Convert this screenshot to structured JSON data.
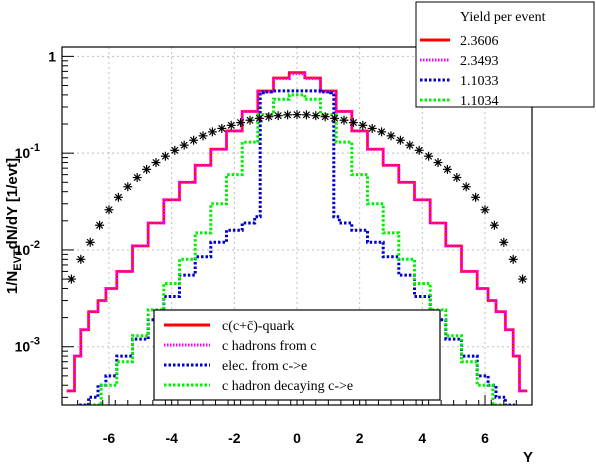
{
  "chart_data": {
    "type": "line",
    "xlabel": "Y",
    "ylabel": "1/N_EVT dN/dY [1/evt]",
    "y_scale": "log",
    "xlim": [
      -7.5,
      7.5
    ],
    "ylim": [
      0.00025,
      1.25
    ],
    "grid": true,
    "x_ticks": [
      -6,
      -4,
      -2,
      0,
      2,
      4,
      6
    ],
    "y_ticks": [
      {
        "value": 1,
        "label": "1"
      },
      {
        "value": 0.1,
        "label": "10^{-1}",
        "base": "10",
        "exp": "-1"
      },
      {
        "value": 0.01,
        "label": "10^{-2}",
        "base": "10",
        "exp": "-2"
      },
      {
        "value": 0.001,
        "label": "10^{-3}",
        "base": "10",
        "exp": "-3"
      }
    ],
    "yield_legend": {
      "title": "Yield per event",
      "placement": "top-right",
      "entries": [
        "2.3606",
        "2.3493",
        "1.1033",
        "1.1034"
      ]
    },
    "series_legend": {
      "placement": "bottom-center",
      "entries": [
        "c(c+c̄)-quark",
        "c hadrons from c",
        "elec. from c->e",
        "c hadron decaying c->e"
      ]
    },
    "series": [
      {
        "name": "c(c+c̄)-quark",
        "style": "solid-step",
        "color": "#ff0000",
        "x": [
          -7.2,
          -7.0,
          -6.8,
          -6.5,
          -6.2,
          -6.0,
          -5.5,
          -5.0,
          -4.5,
          -4.0,
          -3.5,
          -3.0,
          -2.5,
          -2.0,
          -1.5,
          -1.0,
          -0.5,
          0.0,
          0.5,
          1.0,
          1.5,
          2.0,
          2.5,
          3.0,
          3.5,
          4.0,
          4.5,
          5.0,
          5.5,
          6.0,
          6.2,
          6.5,
          6.8,
          7.0,
          7.2
        ],
        "values": [
          0.00035,
          0.0008,
          0.0015,
          0.0023,
          0.003,
          0.004,
          0.006,
          0.011,
          0.019,
          0.033,
          0.05,
          0.075,
          0.11,
          0.17,
          0.27,
          0.44,
          0.6,
          0.68,
          0.6,
          0.44,
          0.27,
          0.17,
          0.11,
          0.075,
          0.05,
          0.033,
          0.019,
          0.011,
          0.006,
          0.004,
          0.003,
          0.0023,
          0.0015,
          0.0008,
          0.00035
        ]
      },
      {
        "name": "c hadrons from c",
        "style": "dotted-step",
        "color": "#ff00ff",
        "x": [
          -7.2,
          -7.0,
          -6.8,
          -6.5,
          -6.2,
          -6.0,
          -5.5,
          -5.0,
          -4.5,
          -4.0,
          -3.5,
          -3.0,
          -2.5,
          -2.0,
          -1.5,
          -1.0,
          -0.5,
          0.0,
          0.5,
          1.0,
          1.5,
          2.0,
          2.5,
          3.0,
          3.5,
          4.0,
          4.5,
          5.0,
          5.5,
          6.0,
          6.2,
          6.5,
          6.8,
          7.0,
          7.2
        ],
        "values": [
          0.00035,
          0.0008,
          0.0015,
          0.0023,
          0.003,
          0.004,
          0.006,
          0.011,
          0.019,
          0.033,
          0.05,
          0.075,
          0.11,
          0.17,
          0.27,
          0.43,
          0.59,
          0.66,
          0.59,
          0.43,
          0.27,
          0.17,
          0.11,
          0.075,
          0.05,
          0.033,
          0.019,
          0.011,
          0.006,
          0.004,
          0.003,
          0.0023,
          0.0015,
          0.0008,
          0.00035
        ]
      },
      {
        "name": "elec. from c->e",
        "style": "dotted-step",
        "color": "#0000cc",
        "x": [
          -6.8,
          -6.5,
          -6.2,
          -6.0,
          -5.5,
          -5.0,
          -4.5,
          -4.0,
          -3.5,
          -3.0,
          -2.5,
          -2.0,
          -1.5,
          -1.2,
          -1.15,
          -1.0,
          -0.5,
          0.0,
          0.5,
          1.0,
          1.15,
          1.2,
          1.5,
          2.0,
          2.5,
          3.0,
          3.5,
          4.0,
          4.5,
          5.0,
          5.5,
          6.0,
          6.2,
          6.5,
          6.8
        ],
        "values": [
          0.00025,
          0.0003,
          0.0004,
          0.0005,
          0.0008,
          0.0012,
          0.0019,
          0.0033,
          0.0055,
          0.0085,
          0.012,
          0.016,
          0.019,
          0.022,
          0.42,
          0.43,
          0.44,
          0.44,
          0.44,
          0.43,
          0.42,
          0.022,
          0.019,
          0.016,
          0.012,
          0.0085,
          0.0055,
          0.0033,
          0.0019,
          0.0012,
          0.0008,
          0.0005,
          0.0004,
          0.0003,
          0.00025
        ]
      },
      {
        "name": "c hadron decaying c->e",
        "style": "dotted-step",
        "color": "#00ee00",
        "x": [
          -6.5,
          -6.0,
          -5.5,
          -5.0,
          -4.5,
          -4.0,
          -3.5,
          -3.0,
          -2.5,
          -2.0,
          -1.5,
          -1.0,
          -0.5,
          0.0,
          0.5,
          1.0,
          1.5,
          2.0,
          2.5,
          3.0,
          3.5,
          4.0,
          4.5,
          5.0,
          5.5,
          6.0,
          6.5
        ],
        "values": [
          0.00025,
          0.0004,
          0.0007,
          0.0013,
          0.0024,
          0.0045,
          0.008,
          0.015,
          0.03,
          0.06,
          0.13,
          0.25,
          0.36,
          0.4,
          0.36,
          0.25,
          0.13,
          0.06,
          0.03,
          0.015,
          0.008,
          0.0045,
          0.0024,
          0.0013,
          0.0007,
          0.0004,
          0.00025
        ]
      },
      {
        "name": "",
        "style": "markers",
        "color": "#000000",
        "x": [
          -7.2,
          -6.9,
          -6.6,
          -6.3,
          -6.0,
          -5.7,
          -5.4,
          -5.1,
          -4.8,
          -4.5,
          -4.2,
          -3.9,
          -3.6,
          -3.3,
          -3.0,
          -2.7,
          -2.4,
          -2.1,
          -1.8,
          -1.5,
          -1.2,
          -0.9,
          -0.6,
          -0.3,
          0.0,
          0.3,
          0.6,
          0.9,
          1.2,
          1.5,
          1.8,
          2.1,
          2.4,
          2.7,
          3.0,
          3.3,
          3.6,
          3.9,
          4.2,
          4.5,
          4.8,
          5.1,
          5.4,
          5.7,
          6.0,
          6.3,
          6.6,
          6.9,
          7.2
        ],
        "values": [
          0.005,
          0.008,
          0.012,
          0.018,
          0.026,
          0.035,
          0.045,
          0.056,
          0.068,
          0.08,
          0.093,
          0.107,
          0.121,
          0.136,
          0.151,
          0.166,
          0.18,
          0.194,
          0.207,
          0.219,
          0.229,
          0.238,
          0.244,
          0.249,
          0.25,
          0.249,
          0.244,
          0.238,
          0.229,
          0.219,
          0.207,
          0.194,
          0.18,
          0.166,
          0.151,
          0.136,
          0.121,
          0.107,
          0.093,
          0.08,
          0.068,
          0.056,
          0.045,
          0.035,
          0.026,
          0.018,
          0.012,
          0.008,
          0.005
        ]
      }
    ]
  }
}
